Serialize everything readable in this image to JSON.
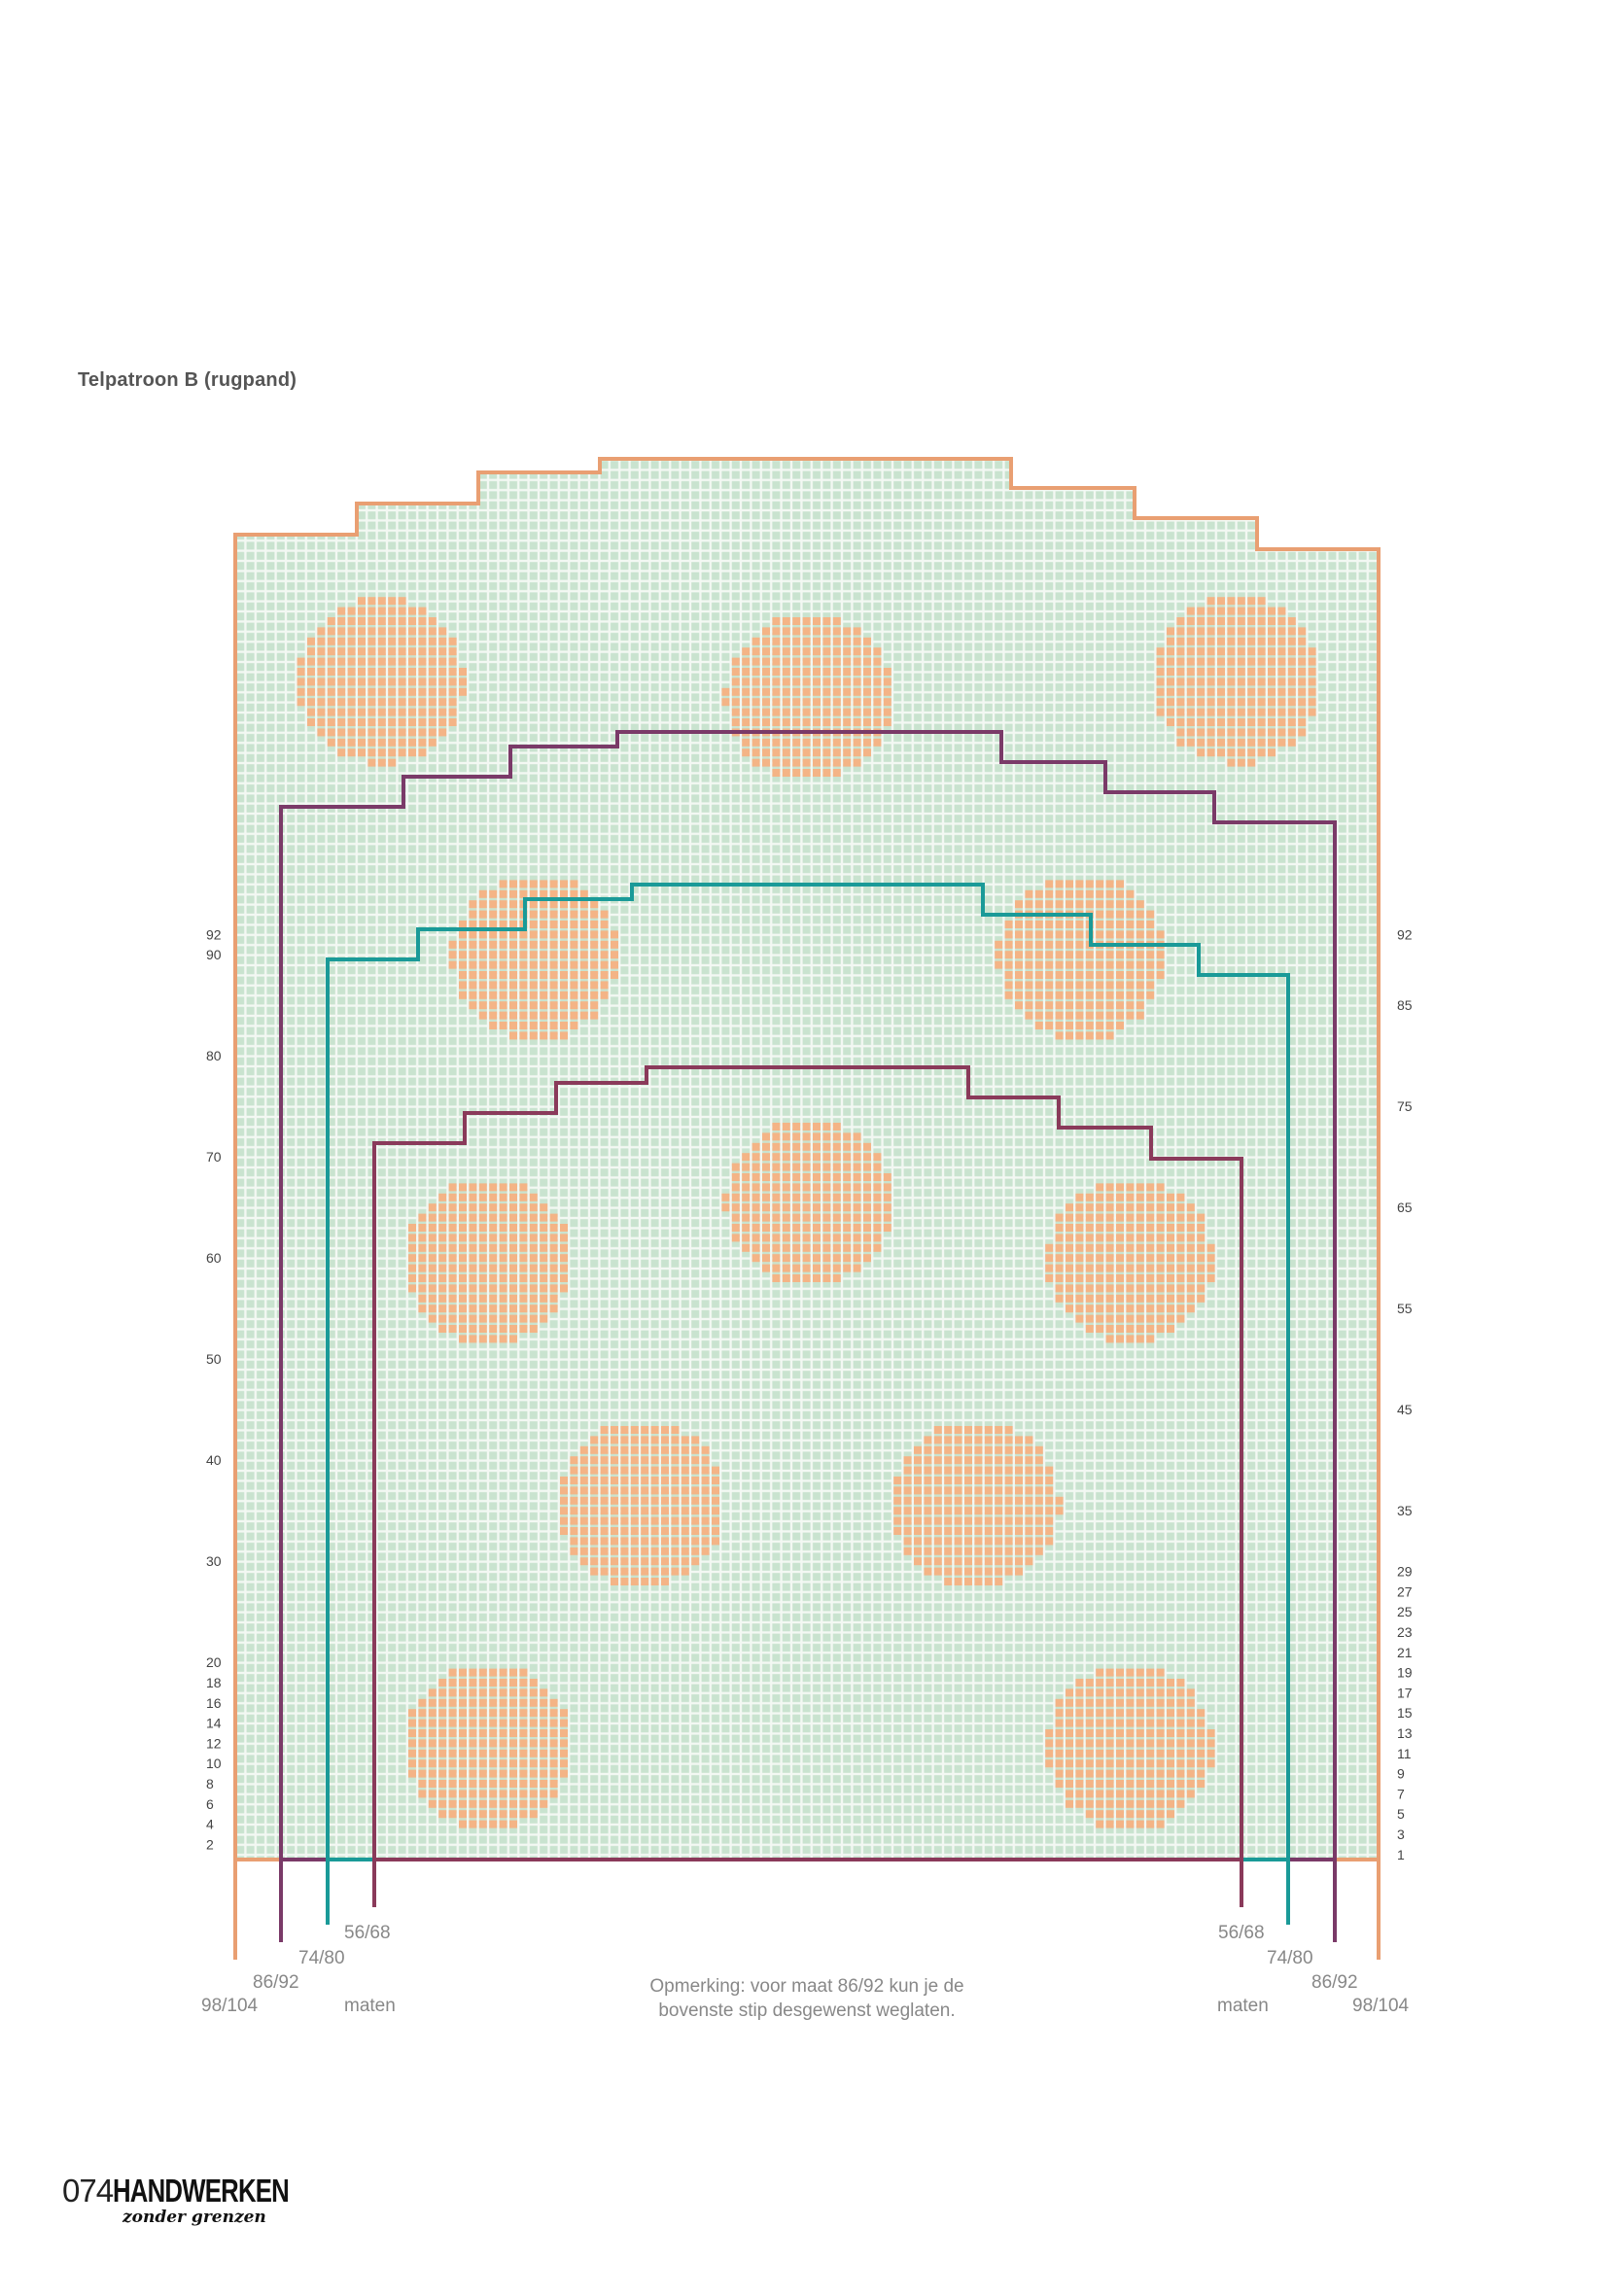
{
  "title": "Telpatroon B (rugpand)",
  "row_labels_left": [
    "92",
    "90",
    "80",
    "70",
    "60",
    "50",
    "40",
    "30",
    "20",
    "18",
    "16",
    "14",
    "12",
    "10",
    "8",
    "6",
    "4",
    "2"
  ],
  "row_labels_right": [
    "92",
    "85",
    "75",
    "65",
    "55",
    "45",
    "35",
    "29",
    "27",
    "25",
    "23",
    "21",
    "19",
    "17",
    "15",
    "13",
    "11",
    "9",
    "7",
    "5",
    "3",
    "1"
  ],
  "sizes": {
    "s1": "56/68",
    "s2": "74/80",
    "s3": "86/92",
    "s4": "98/104",
    "maten": "maten"
  },
  "note_line1": "Opmerking: voor maat 86/92 kun je de",
  "note_line2": "bovenste stip desgewenst weglaten.",
  "logo": {
    "number": "074",
    "brand": "HANDWERKEN",
    "tagline": "zonder grenzen"
  },
  "colors": {
    "grid_cell": "#c8e2cd",
    "grid_bg": "#eef5ef",
    "dot": "#f4b486",
    "size_98_104": "#e99f72",
    "size_86_92": "#7a3a68",
    "size_74_80": "#1a9a98",
    "size_56_68": "#8a3a5a"
  }
}
